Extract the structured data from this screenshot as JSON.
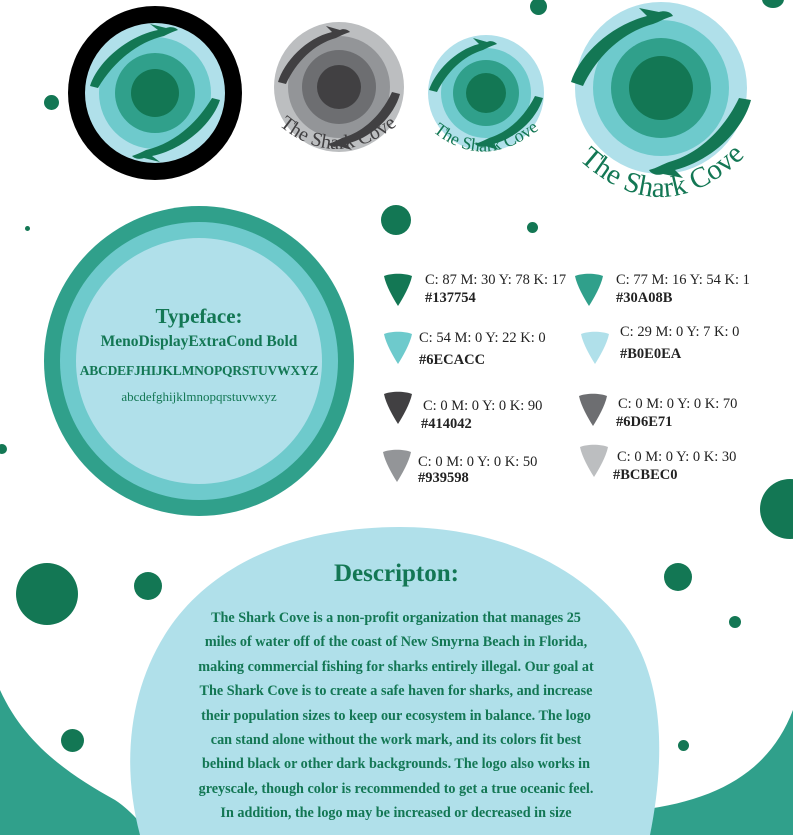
{
  "brand": {
    "wordmark": "The Shark Cove"
  },
  "colors": {
    "dark_green": "#137754",
    "teal": "#30A08B",
    "aqua": "#6ECACC",
    "light_blue": "#B0E0EA",
    "black": "#000000"
  },
  "typeface": {
    "title": "Typeface:",
    "font_name": "MenoDisplayExtraCond Bold",
    "uppercase": "ABCDEFJHIJKLMNOPQRSTUVWXYZ",
    "lowercase": "abcdefghijklmnopqrstuvwxyz"
  },
  "swatches": [
    {
      "cmyk": "C: 87  M: 30  Y: 78  K: 17",
      "hex": "#137754",
      "color": "#137754"
    },
    {
      "cmyk": "C: 77  M: 16  Y: 54  K: 1",
      "hex": "#30A08B",
      "color": "#30A08B"
    },
    {
      "cmyk": "C: 54  M: 0  Y: 22  K: 0",
      "hex": "#6ECACC",
      "color": "#6ECACC"
    },
    {
      "cmyk": "C: 29  M: 0  Y: 7  K: 0",
      "hex": "#B0E0EA",
      "color": "#B0E0EA"
    },
    {
      "cmyk": "C: 0  M: 0  Y: 0  K: 90",
      "hex": "#414042",
      "color": "#414042"
    },
    {
      "cmyk": "C: 0  M: 0  Y: 0  K: 70",
      "hex": "#6D6E71",
      "color": "#6D6E71"
    },
    {
      "cmyk": "C: 0  M: 0  Y: 0  K: 50",
      "hex": "#939598",
      "color": "#939598"
    },
    {
      "cmyk": "C: 0  M: 0  Y: 0  K: 30",
      "hex": "#BCBEC0",
      "color": "#BCBEC0"
    }
  ],
  "description": {
    "title": "Descripton:",
    "lines": [
      "The Shark Cove is a non-profit organization that manages 25",
      "miles of water off of the  coast of New Smyrna Beach in Florida,",
      "making commercial fishing for sharks entirely illegal. Our goal at",
      "The Shark Cove is to create a safe haven for sharks, and increase",
      "their population sizes to keep our ecosystem in balance. The logo",
      "can stand alone without the work mark, and its colors fit best",
      "behind black or other dark backgrounds. The logo also works in",
      "greyscale, though color is recommended to get a true oceanic feel.",
      "In addition, the logo may be increased or decreased in size"
    ]
  }
}
